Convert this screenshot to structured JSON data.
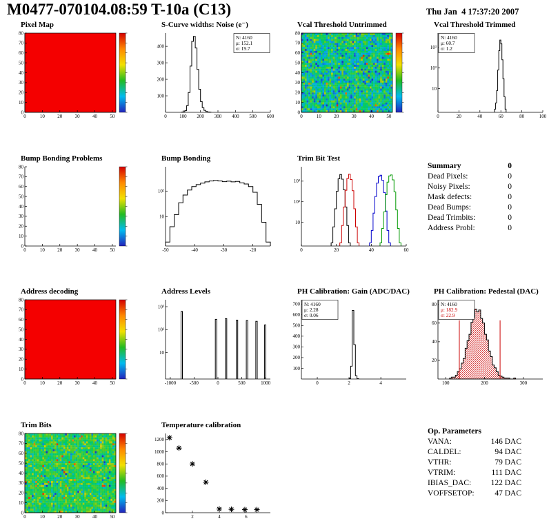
{
  "header": {
    "title": "M0477-070104.08:59 T-10a (C13)",
    "datetime": "Thu Jan  4 17:37:20 2007"
  },
  "summary": {
    "title": "Summary",
    "total": "0",
    "rows": [
      {
        "label": "Dead Pixels:",
        "value": "0"
      },
      {
        "label": "Noisy Pixels:",
        "value": "0"
      },
      {
        "label": "Mask defects:",
        "value": "0"
      },
      {
        "label": "Dead Bumps:",
        "value": "0"
      },
      {
        "label": "Dead Trimbits:",
        "value": "0"
      },
      {
        "label": "Address Probl:",
        "value": "0"
      }
    ]
  },
  "op_parameters": {
    "title": "Op. Parameters",
    "rows": [
      {
        "label": "VANA:",
        "value": "146 DAC"
      },
      {
        "label": "CALDEL:",
        "value": "94 DAC"
      },
      {
        "label": "VTHR:",
        "value": "79 DAC"
      },
      {
        "label": "VTRIM:",
        "value": "111 DAC"
      },
      {
        "label": "IBIAS_DAC:",
        "value": "122 DAC"
      },
      {
        "label": "VOFFSETOP:",
        "value": "47 DAC"
      }
    ]
  },
  "chart_data": [
    {
      "id": "pixel_map",
      "title": "Pixel Map",
      "type": "heatmap",
      "fill": "solid",
      "fill_color": "#f40000",
      "colorbar": true,
      "x_range": [
        0,
        52
      ],
      "y_range": [
        0,
        80
      ],
      "xticks": [
        0,
        10,
        20,
        30,
        40,
        50
      ],
      "yticks": [
        0,
        10,
        20,
        30,
        40,
        50,
        60,
        70,
        80
      ]
    },
    {
      "id": "scurve_noise",
      "title": "S-Curve widths: Noise (e⁻)",
      "type": "histogram",
      "scale": "linear",
      "x_range": [
        0,
        600
      ],
      "y_range": [
        0,
        480
      ],
      "xticks": [
        0,
        100,
        200,
        300,
        400,
        500,
        600
      ],
      "yticks": [
        100,
        200,
        300,
        400
      ],
      "bins_start": 90,
      "bin_width": 10,
      "values": [
        1,
        3,
        10,
        40,
        120,
        280,
        430,
        460,
        390,
        260,
        140,
        65,
        28,
        12,
        5,
        2,
        1
      ],
      "stats": {
        "pos": "right",
        "lines": [
          {
            "text": "N: 4160"
          },
          {
            "text": "μ: 152.1"
          },
          {
            "text": "σ: 19.7"
          }
        ]
      }
    },
    {
      "id": "vcal_threshold_untrimmed",
      "title": "Vcal Threshold Untrimmed",
      "type": "heatmap",
      "fill": "noise",
      "noise": {
        "seed": 7,
        "mean": 0.42,
        "spread": 0.38,
        "lo_frac": 0.05,
        "hi_frac": 0.012
      },
      "colorbar": true,
      "x_range": [
        0,
        52
      ],
      "y_range": [
        0,
        80
      ],
      "xticks": [
        0,
        10,
        20,
        30,
        40,
        50
      ],
      "yticks": [
        0,
        10,
        20,
        30,
        40,
        50,
        60,
        70,
        80
      ]
    },
    {
      "id": "vcal_threshold_trimmed",
      "title": "Vcal Threshold Trimmed",
      "type": "histogram",
      "scale": "log",
      "x_range": [
        0,
        100
      ],
      "y_range": [
        0.7,
        5000
      ],
      "xticks": [
        0,
        20,
        40,
        60,
        80,
        100
      ],
      "yticks": [
        [
          10,
          "10"
        ],
        [
          100,
          "10²"
        ],
        [
          1000,
          "10³"
        ]
      ],
      "bins_start": 54,
      "bin_width": 1,
      "values": [
        1,
        2,
        8,
        80,
        700,
        2300,
        1500,
        250,
        30,
        4,
        1
      ],
      "stats": {
        "pos": "left",
        "lines": [
          {
            "text": "N: 4160"
          },
          {
            "text": "μ: 60.7"
          },
          {
            "text": "σ: 1.2"
          }
        ]
      }
    },
    {
      "id": "bump_bonding_problems",
      "title": "Bump Bonding Problems",
      "type": "heatmap",
      "fill": "empty",
      "colorbar": true,
      "x_range": [
        0,
        52
      ],
      "y_range": [
        0,
        80
      ],
      "xticks": [
        0,
        10,
        20,
        30,
        40,
        50
      ],
      "yticks": [
        0,
        10,
        20,
        30,
        40,
        50,
        60,
        70,
        80
      ]
    },
    {
      "id": "bump_bonding",
      "title": "Bump Bonding",
      "type": "histogram",
      "scale": "log",
      "x_range": [
        -50,
        -14
      ],
      "y_range": [
        0.7,
        900
      ],
      "xticks": [
        -50,
        -40,
        -30,
        -20
      ],
      "yticks": [
        [
          10,
          "10"
        ],
        [
          100,
          "10²"
        ]
      ],
      "bins_start": -50,
      "bin_width": 1.5,
      "values": [
        1,
        4,
        12,
        35,
        70,
        110,
        150,
        180,
        205,
        230,
        250,
        260,
        250,
        235,
        245,
        230,
        240,
        210,
        190,
        150,
        90,
        30,
        6,
        1
      ]
    },
    {
      "id": "trim_bit_test",
      "title": "Trim Bit Test",
      "type": "histogram_multi",
      "scale": "log",
      "x_range": [
        0,
        60
      ],
      "y_range": [
        0.7,
        5000
      ],
      "xticks": [
        0,
        20,
        40,
        60
      ],
      "yticks": [
        [
          10,
          "10"
        ],
        [
          100,
          "10²"
        ],
        [
          1000,
          "10³"
        ]
      ],
      "series": [
        {
          "name": "trim-bits-0",
          "color": "#000000",
          "bins_start": 17,
          "bin_width": 1,
          "values": [
            1,
            6,
            45,
            320,
            1300,
            2100,
            1250,
            380,
            55,
            7,
            1
          ]
        },
        {
          "name": "trim-bits-1",
          "color": "#cc0000",
          "bins_start": 22,
          "bin_width": 1,
          "values": [
            1,
            7,
            55,
            360,
            1350,
            2150,
            1200,
            340,
            45,
            6,
            1
          ]
        },
        {
          "name": "trim-bits-2",
          "color": "#0000cc",
          "bins_start": 39,
          "bin_width": 1,
          "values": [
            1,
            4,
            28,
            180,
            800,
            1700,
            1950,
            1100,
            280,
            35,
            4,
            1
          ]
        },
        {
          "name": "trim-bits-3",
          "color": "#009900",
          "bins_start": 45,
          "bin_width": 1,
          "values": [
            1,
            5,
            32,
            220,
            900,
            1800,
            2000,
            1150,
            300,
            40,
            5,
            1
          ]
        }
      ]
    },
    {
      "id": "address_decoding",
      "title": "Address decoding",
      "type": "heatmap",
      "fill": "solid",
      "fill_color": "#f40000",
      "colorbar": true,
      "x_range": [
        0,
        52
      ],
      "y_range": [
        0,
        80
      ],
      "xticks": [
        0,
        10,
        20,
        30,
        40,
        50
      ],
      "yticks": [
        0,
        10,
        20,
        30,
        40,
        50,
        60,
        70,
        80
      ]
    },
    {
      "id": "address_levels",
      "title": "Address Levels",
      "type": "spikes",
      "scale": "log",
      "x_range": [
        -1100,
        1100
      ],
      "y_range": [
        0.7,
        2000
      ],
      "xticks": [
        -1000,
        -500,
        0,
        500,
        1000
      ],
      "yticks": [
        [
          10,
          "10"
        ],
        [
          100,
          "10²"
        ],
        [
          1000,
          "10³"
        ]
      ],
      "spike_width": 30,
      "spikes": [
        [
          -760,
          620
        ],
        [
          -40,
          280
        ],
        [
          170,
          300
        ],
        [
          400,
          260
        ],
        [
          610,
          250
        ],
        [
          810,
          230
        ],
        [
          990,
          160
        ]
      ]
    },
    {
      "id": "ph_calibration_gain",
      "title": "PH Calibration: Gain (ADC/DAC)",
      "type": "histogram",
      "scale": "linear",
      "x_range": [
        -1,
        5.6
      ],
      "y_range": [
        0,
        740
      ],
      "xticks": [
        0,
        2,
        4
      ],
      "yticks": [
        100,
        200,
        300,
        400,
        500,
        600,
        700
      ],
      "bins_start": 2.0,
      "bin_width": 0.1,
      "values": [
        4,
        120,
        640,
        320,
        30,
        3
      ],
      "stats": {
        "pos": "left",
        "lines": [
          {
            "text": "N: 4160"
          },
          {
            "text": "μ: 2.28"
          },
          {
            "text": "σ: 0.06"
          }
        ]
      }
    },
    {
      "id": "ph_calibration_pedestal",
      "title": "PH Calibration: Pedestal (DAC)",
      "type": "histogram",
      "scale": "linear",
      "fill": "hatch",
      "hatch_color": "#cc0000",
      "x_range": [
        80,
        350
      ],
      "y_range": [
        0,
        85
      ],
      "xticks": [
        100,
        200,
        300
      ],
      "yticks": [
        20,
        40,
        60,
        80
      ],
      "bins_start": 110,
      "bin_width": 5,
      "values": [
        1,
        2,
        2,
        4,
        8,
        11,
        17,
        22,
        33,
        41,
        48,
        61,
        66,
        75,
        72,
        74,
        65,
        60,
        48,
        42,
        30,
        24,
        15,
        12,
        8,
        4,
        3,
        2,
        1,
        1,
        1,
        0,
        0,
        1
      ],
      "vlines": [
        {
          "x": 135,
          "color": "#cc0000"
        },
        {
          "x": 240,
          "color": "#cc0000"
        }
      ],
      "stats": {
        "pos": "left",
        "lines": [
          {
            "text": "N: 4160"
          },
          {
            "text": "μ: 182.9",
            "color": "#cc0000"
          },
          {
            "text": "σ: 22.9",
            "color": "#cc0000"
          }
        ]
      }
    },
    {
      "id": "trim_bits_map",
      "title": "Trim Bits",
      "type": "heatmap",
      "fill": "noise",
      "noise": {
        "seed": 21,
        "mean": 0.52,
        "spread": 0.3,
        "lo_frac": 0.02,
        "hi_frac": 0.015
      },
      "colorbar": true,
      "x_range": [
        0,
        52
      ],
      "y_range": [
        0,
        80
      ],
      "xticks": [
        0,
        10,
        20,
        30,
        40,
        50
      ],
      "yticks": [
        0,
        10,
        20,
        30,
        40,
        50,
        60,
        70,
        80
      ]
    },
    {
      "id": "temperature_calibration",
      "title": "Temperature calibration",
      "type": "scatter",
      "marker": "asterisk",
      "x_range": [
        0,
        7.8
      ],
      "y_range": [
        0,
        1300
      ],
      "xticks": [
        2,
        4,
        6
      ],
      "yticks": [
        0,
        200,
        400,
        600,
        800,
        1000,
        1200
      ],
      "points": [
        [
          0.3,
          1230
        ],
        [
          1.0,
          1060
        ],
        [
          2.0,
          800
        ],
        [
          3.0,
          500
        ],
        [
          4.0,
          60
        ],
        [
          4.9,
          55
        ],
        [
          5.9,
          50
        ],
        [
          6.8,
          50
        ]
      ]
    }
  ]
}
